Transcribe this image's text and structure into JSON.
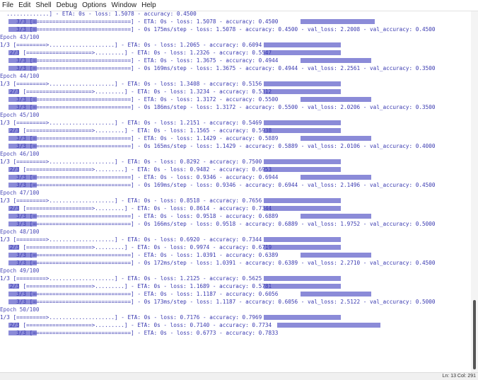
{
  "menu": [
    "File",
    "Edit",
    "Shell",
    "Debug",
    "Options",
    "Window",
    "Help"
  ],
  "status": "Ln: 13  Col: 291",
  "lines": [
    {
      "text": "  .............] - ETA: 0s - loss: 1.5078 - accuracy: 0.4500",
      "hl": [],
      "type": "log"
    },
    {
      "text": "     3/3 [==============================] - ETA: 0s - loss: 1.5078 - accuracy: 0.4500",
      "hl": [
        [
          12,
          52
        ],
        [
          425,
          530
        ]
      ],
      "type": "log"
    },
    {
      "text": "     3/3 [==============================] - 0s 175ms/step - loss: 1.5078 - accuracy: 0.4500 - val_loss: 2.2008 - val_accuracy: 0.4500",
      "hl": [
        [
          12,
          52
        ]
      ],
      "type": "log"
    },
    {
      "text": "Epoch 43/100",
      "hl": [],
      "type": "epoch"
    },
    {
      "text": "1/3 [=========>....................] - ETA: 0s - loss: 1.2065 - accuracy: 0.6094",
      "hl": [
        [
          373,
          482
        ]
      ],
      "type": "log"
    },
    {
      "text": "   2/3 [====================>.........] - ETA: 0s - loss: 1.2326 - accuracy: 0.5547",
      "hl": [
        [
          12,
          27
        ],
        [
          373,
          482
        ]
      ],
      "type": "log"
    },
    {
      "text": "     3/3 [==============================] - ETA: 0s - loss: 1.3675 - accuracy: 0.4944",
      "hl": [
        [
          12,
          52
        ],
        [
          425,
          525
        ]
      ],
      "type": "log"
    },
    {
      "text": "     3/3 [==============================] - 0s 169ms/step - loss: 1.3675 - accuracy: 0.4944 - val_loss: 2.2561 - val_accuracy: 0.3500",
      "hl": [
        [
          12,
          52
        ]
      ],
      "type": "log"
    },
    {
      "text": "Epoch 44/100",
      "hl": [],
      "type": "epoch"
    },
    {
      "text": "1/3 [=========>....................] - ETA: 0s - loss: 1.3408 - accuracy: 0.5156",
      "hl": [
        [
          373,
          482
        ]
      ],
      "type": "log"
    },
    {
      "text": "   2/3 [====================>.........] - ETA: 0s - loss: 1.3234 - accuracy: 0.5312",
      "hl": [
        [
          12,
          27
        ],
        [
          373,
          482
        ]
      ],
      "type": "log"
    },
    {
      "text": "     3/3 [==============================] - ETA: 0s - loss: 1.3172 - accuracy: 0.5500",
      "hl": [
        [
          12,
          52
        ],
        [
          425,
          525
        ]
      ],
      "type": "log"
    },
    {
      "text": "     3/3 [==============================] - 0s 186ms/step - loss: 1.3172 - accuracy: 0.5500 - val_loss: 2.0206 - val_accuracy: 0.3500",
      "hl": [
        [
          12,
          52
        ]
      ],
      "type": "log"
    },
    {
      "text": "Epoch 45/100",
      "hl": [],
      "type": "epoch"
    },
    {
      "text": "1/3 [=========>....................] - ETA: 0s - loss: 1.2151 - accuracy: 0.5469",
      "hl": [
        [
          373,
          482
        ]
      ],
      "type": "log"
    },
    {
      "text": "   2/3 [====================>.........] - ETA: 0s - loss: 1.1565 - accuracy: 0.5938",
      "hl": [
        [
          12,
          27
        ],
        [
          373,
          482
        ]
      ],
      "type": "log"
    },
    {
      "text": "     3/3 [==============================] - ETA: 0s - loss: 1.1429 - accuracy: 0.5889",
      "hl": [
        [
          12,
          52
        ],
        [
          425,
          525
        ]
      ],
      "type": "log"
    },
    {
      "text": "     3/3 [==============================] - 0s 165ms/step - loss: 1.1429 - accuracy: 0.5889 - val_loss: 2.0106 - val_accuracy: 0.4000",
      "hl": [
        [
          12,
          52
        ]
      ],
      "type": "log"
    },
    {
      "text": "Epoch 46/100",
      "hl": [],
      "type": "epoch"
    },
    {
      "text": "1/3 [=========>....................] - ETA: 0s - loss: 0.8292 - accuracy: 0.7500",
      "hl": [
        [
          373,
          482
        ]
      ],
      "type": "log"
    },
    {
      "text": "   2/3 [====================>.........] - ETA: 0s - loss: 0.9482 - accuracy: 0.6953",
      "hl": [
        [
          12,
          27
        ],
        [
          373,
          482
        ]
      ],
      "type": "log"
    },
    {
      "text": "     3/3 [==============================] - ETA: 0s - loss: 0.9346 - accuracy: 0.6944",
      "hl": [
        [
          12,
          52
        ],
        [
          425,
          525
        ]
      ],
      "type": "log"
    },
    {
      "text": "     3/3 [==============================] - 0s 169ms/step - loss: 0.9346 - accuracy: 0.6944 - val_loss: 2.1496 - val_accuracy: 0.4500",
      "hl": [
        [
          12,
          52
        ]
      ],
      "type": "log"
    },
    {
      "text": "Epoch 47/100",
      "hl": [],
      "type": "epoch"
    },
    {
      "text": "1/3 [=========>....................] - ETA: 0s - loss: 0.8518 - accuracy: 0.7656",
      "hl": [
        [
          373,
          482
        ]
      ],
      "type": "log"
    },
    {
      "text": "   2/3 [====================>.........] - ETA: 0s - loss: 0.8614 - accuracy: 0.7344",
      "hl": [
        [
          12,
          27
        ],
        [
          373,
          482
        ]
      ],
      "type": "log"
    },
    {
      "text": "     3/3 [==============================] - ETA: 0s - loss: 0.9518 - accuracy: 0.6889",
      "hl": [
        [
          12,
          52
        ],
        [
          425,
          525
        ]
      ],
      "type": "log"
    },
    {
      "text": "     3/3 [==============================] - 0s 166ms/step - loss: 0.9518 - accuracy: 0.6889 - val_loss: 1.9752 - val_accuracy: 0.5000",
      "hl": [
        [
          12,
          52
        ]
      ],
      "type": "log"
    },
    {
      "text": "Epoch 48/100",
      "hl": [],
      "type": "epoch"
    },
    {
      "text": "1/3 [=========>....................] - ETA: 0s - loss: 0.6920 - accuracy: 0.7344",
      "hl": [
        [
          373,
          482
        ]
      ],
      "type": "log"
    },
    {
      "text": "   2/3 [====================>.........] - ETA: 0s - loss: 0.9974 - accuracy: 0.6719",
      "hl": [
        [
          12,
          27
        ],
        [
          373,
          482
        ]
      ],
      "type": "log"
    },
    {
      "text": "     3/3 [==============================] - ETA: 0s - loss: 1.0391 - accuracy: 0.6389",
      "hl": [
        [
          12,
          52
        ],
        [
          425,
          525
        ]
      ],
      "type": "log"
    },
    {
      "text": "     3/3 [==============================] - 0s 172ms/step - loss: 1.0391 - accuracy: 0.6389 - val_loss: 2.2710 - val_accuracy: 0.4500",
      "hl": [
        [
          12,
          52
        ]
      ],
      "type": "log"
    },
    {
      "text": "Epoch 49/100",
      "hl": [],
      "type": "epoch"
    },
    {
      "text": "1/3 [=========>....................] - ETA: 0s - loss: 1.2125 - accuracy: 0.5625",
      "hl": [
        [
          373,
          482
        ]
      ],
      "type": "log"
    },
    {
      "text": "   2/3 [====================>.........] - ETA: 0s - loss: 1.1689 - accuracy: 0.5781",
      "hl": [
        [
          12,
          27
        ],
        [
          373,
          482
        ]
      ],
      "type": "log"
    },
    {
      "text": "     3/3 [==============================] - ETA: 0s - loss: 1.1187 - accuracy: 0.6056",
      "hl": [
        [
          12,
          52
        ],
        [
          425,
          525
        ]
      ],
      "type": "log"
    },
    {
      "text": "     3/3 [==============================] - 0s 173ms/step - loss: 1.1187 - accuracy: 0.6056 - val_loss: 2.5122 - val_accuracy: 0.5000",
      "hl": [
        [
          12,
          52
        ]
      ],
      "type": "log"
    },
    {
      "text": "Epoch 50/100",
      "hl": [],
      "type": "epoch"
    },
    {
      "text": "1/3 [=========>....................] - ETA: 0s - loss: 0.7176 - accuracy: 0.7969",
      "hl": [
        [
          373,
          482
        ]
      ],
      "type": "log"
    },
    {
      "text": "   2/3 [====================>.........] - ETA: 0s - loss: 0.7140 - accuracy: 0.7734",
      "hl": [
        [
          12,
          27
        ],
        [
          392,
          538
        ]
      ],
      "type": "log"
    },
    {
      "text": "     3/3 [==============================] - ETA: 0s - loss: 0.6773 - accuracy: 0.7833",
      "hl": [
        [
          12,
          52
        ]
      ],
      "type": "log"
    }
  ]
}
